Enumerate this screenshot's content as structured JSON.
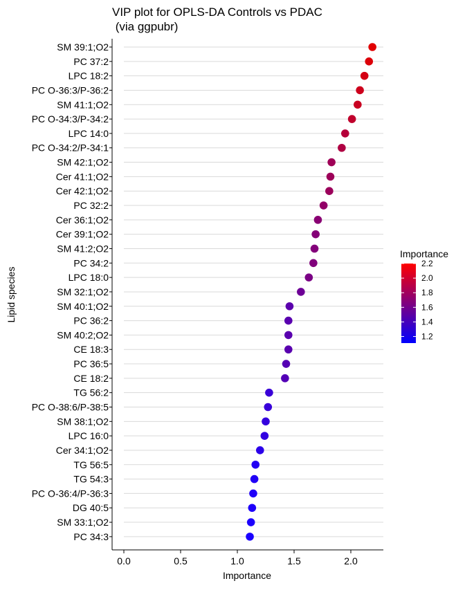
{
  "title_line1": "VIP plot for OPLS-DA Controls vs PDAC",
  "title_line2": " (via ggpubr)",
  "chart_data": {
    "type": "scatter",
    "title": "VIP plot for OPLS-DA Controls vs PDAC\n (via ggpubr)",
    "xlabel": "Importance",
    "ylabel": "Lipid species",
    "xlim": [
      0,
      2.27
    ],
    "x_ticks": [
      "0.0",
      "0.5",
      "1.0",
      "1.5",
      "2.0"
    ],
    "x_tick_values": [
      0.0,
      0.5,
      1.0,
      1.5,
      2.0
    ],
    "grid": "horizontal major lines",
    "legend": {
      "title": "Importance",
      "position": "right",
      "labels": [
        "2.2",
        "2.0",
        "1.8",
        "1.6",
        "1.4",
        "1.2"
      ],
      "label_values": [
        2.2,
        2.0,
        1.8,
        1.6,
        1.4,
        1.2
      ],
      "range": [
        1.11,
        2.2
      ],
      "low_color": "#0000ff",
      "high_color": "#ff0000"
    },
    "point_color_low": "#1a00ff",
    "point_color_high": "#e30000",
    "categories": [
      "SM 39:1;O2",
      "PC 37:2",
      "LPC 18:2",
      "PC O-36:3/P-36:2",
      "SM 41:1;O2",
      "PC O-34:3/P-34:2",
      "LPC 14:0",
      "PC O-34:2/P-34:1",
      "SM 42:1;O2",
      "Cer 41:1;O2",
      "Cer 42:1;O2",
      "PC 32:2",
      "Cer 36:1;O2",
      "Cer 39:1;O2",
      "SM 41:2;O2",
      "PC 34:2",
      "LPC 18:0",
      "SM 32:1;O2",
      "SM 40:1;O2",
      "PC 36:2",
      "SM 40:2;O2",
      "CE 18:3",
      "PC 36:5",
      "CE 18:2",
      "TG 56:2",
      "PC O-38:6/P-38:5",
      "SM 38:1;O2",
      "LPC 16:0",
      "Cer 34:1;O2",
      "TG 56:5",
      "TG 54:3",
      "PC O-36:4/P-36:3",
      "DG 40:5",
      "SM 33:1;O2",
      "PC 34:3"
    ],
    "values": [
      2.19,
      2.16,
      2.12,
      2.08,
      2.06,
      2.01,
      1.95,
      1.92,
      1.83,
      1.82,
      1.81,
      1.76,
      1.71,
      1.69,
      1.68,
      1.67,
      1.63,
      1.56,
      1.46,
      1.45,
      1.45,
      1.45,
      1.43,
      1.42,
      1.28,
      1.27,
      1.25,
      1.24,
      1.2,
      1.16,
      1.15,
      1.14,
      1.13,
      1.12,
      1.11
    ]
  }
}
